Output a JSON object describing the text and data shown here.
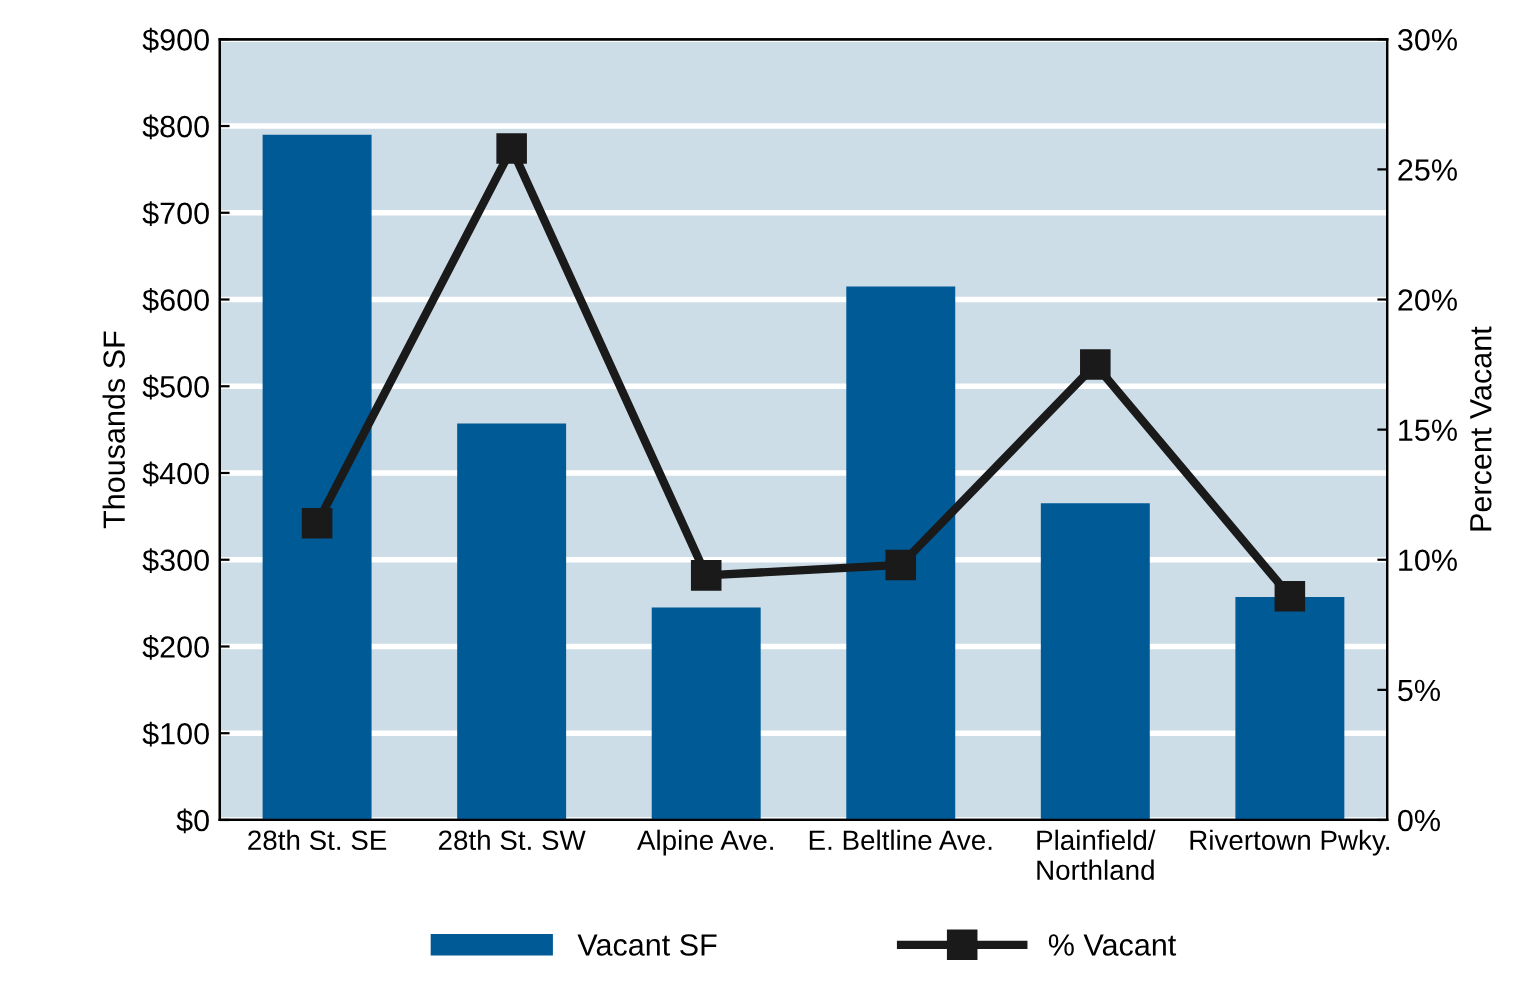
{
  "chart_data": {
    "type": "bar",
    "categories": [
      "28th St. SE",
      "28th St. SW",
      "Alpine Ave.",
      "E. Beltline Ave.",
      "Plainfield/\nNorthland",
      "Rivertown Pwky."
    ],
    "series": [
      {
        "name": "Vacant SF",
        "color": "#005a96",
        "values": [
          790,
          457,
          245,
          615,
          365,
          257
        ]
      },
      {
        "name": "% Vacant",
        "type": "line",
        "axis": "y2",
        "color": "#1a1a1a",
        "marker": "square",
        "values": [
          11.4,
          25.8,
          9.4,
          9.8,
          17.5,
          8.6
        ]
      }
    ],
    "ylabel": "Thousands SF",
    "y2label": "Percent Vacant",
    "ylim": [
      0,
      900
    ],
    "yticks": [
      {
        "value": 0,
        "label": "$0"
      },
      {
        "value": 100,
        "label": "$100"
      },
      {
        "value": 200,
        "label": "$200"
      },
      {
        "value": 300,
        "label": "$300"
      },
      {
        "value": 400,
        "label": "$400"
      },
      {
        "value": 500,
        "label": "$500"
      },
      {
        "value": 600,
        "label": "$600"
      },
      {
        "value": 700,
        "label": "$700"
      },
      {
        "value": 800,
        "label": "$800"
      },
      {
        "value": 900,
        "label": "$900"
      }
    ],
    "y2lim": [
      0,
      30
    ],
    "y2ticks": [
      {
        "value": 0,
        "label": "0%"
      },
      {
        "value": 5,
        "label": "5%"
      },
      {
        "value": 10,
        "label": "10%"
      },
      {
        "value": 15,
        "label": "15%"
      },
      {
        "value": 20,
        "label": "20%"
      },
      {
        "value": 25,
        "label": "25%"
      },
      {
        "value": 30,
        "label": "30%"
      }
    ],
    "grid": "y",
    "legend": "bottom"
  }
}
